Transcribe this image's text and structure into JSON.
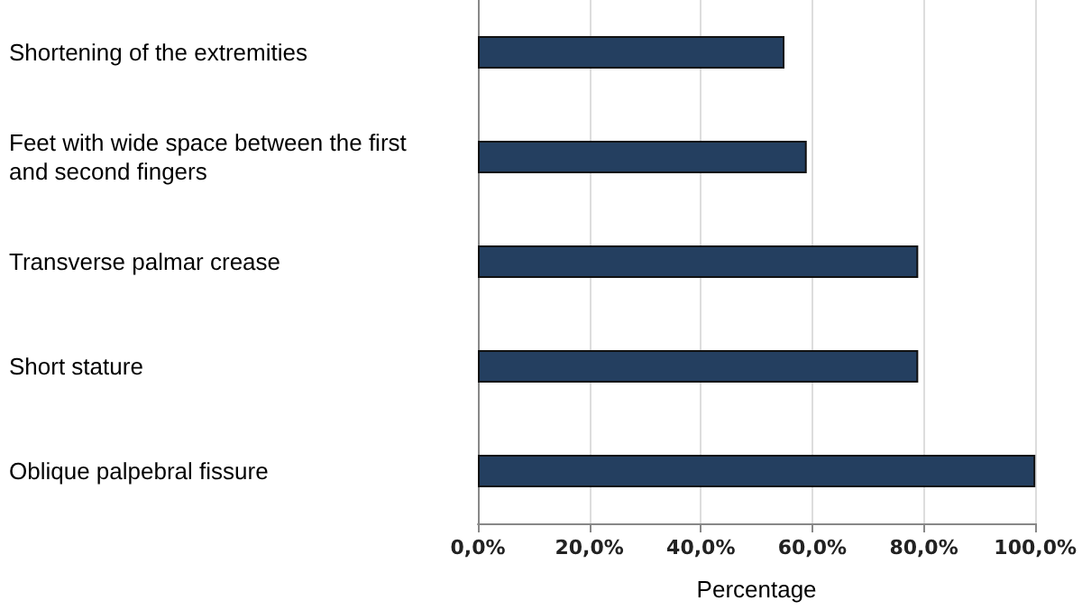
{
  "chart_data": {
    "type": "bar",
    "orientation": "horizontal",
    "xlabel": "Percentage",
    "categories": [
      "Shortening of the extremities",
      "Feet with wide space between the first and second fingers",
      "Transverse palmar crease",
      "Short stature",
      "Oblique palpebral fissure"
    ],
    "values": [
      55,
      59,
      79,
      79,
      100
    ],
    "color": "#243f60",
    "xlim": [
      0,
      100
    ],
    "xticks": [
      {
        "value": 0,
        "label": "0,0%"
      },
      {
        "value": 20,
        "label": "20,0%"
      },
      {
        "value": 40,
        "label": "40,0%"
      },
      {
        "value": 60,
        "label": "60,0%"
      },
      {
        "value": 80,
        "label": "80,0%"
      },
      {
        "value": 100,
        "label": "100,0%"
      }
    ],
    "grid": "x"
  }
}
